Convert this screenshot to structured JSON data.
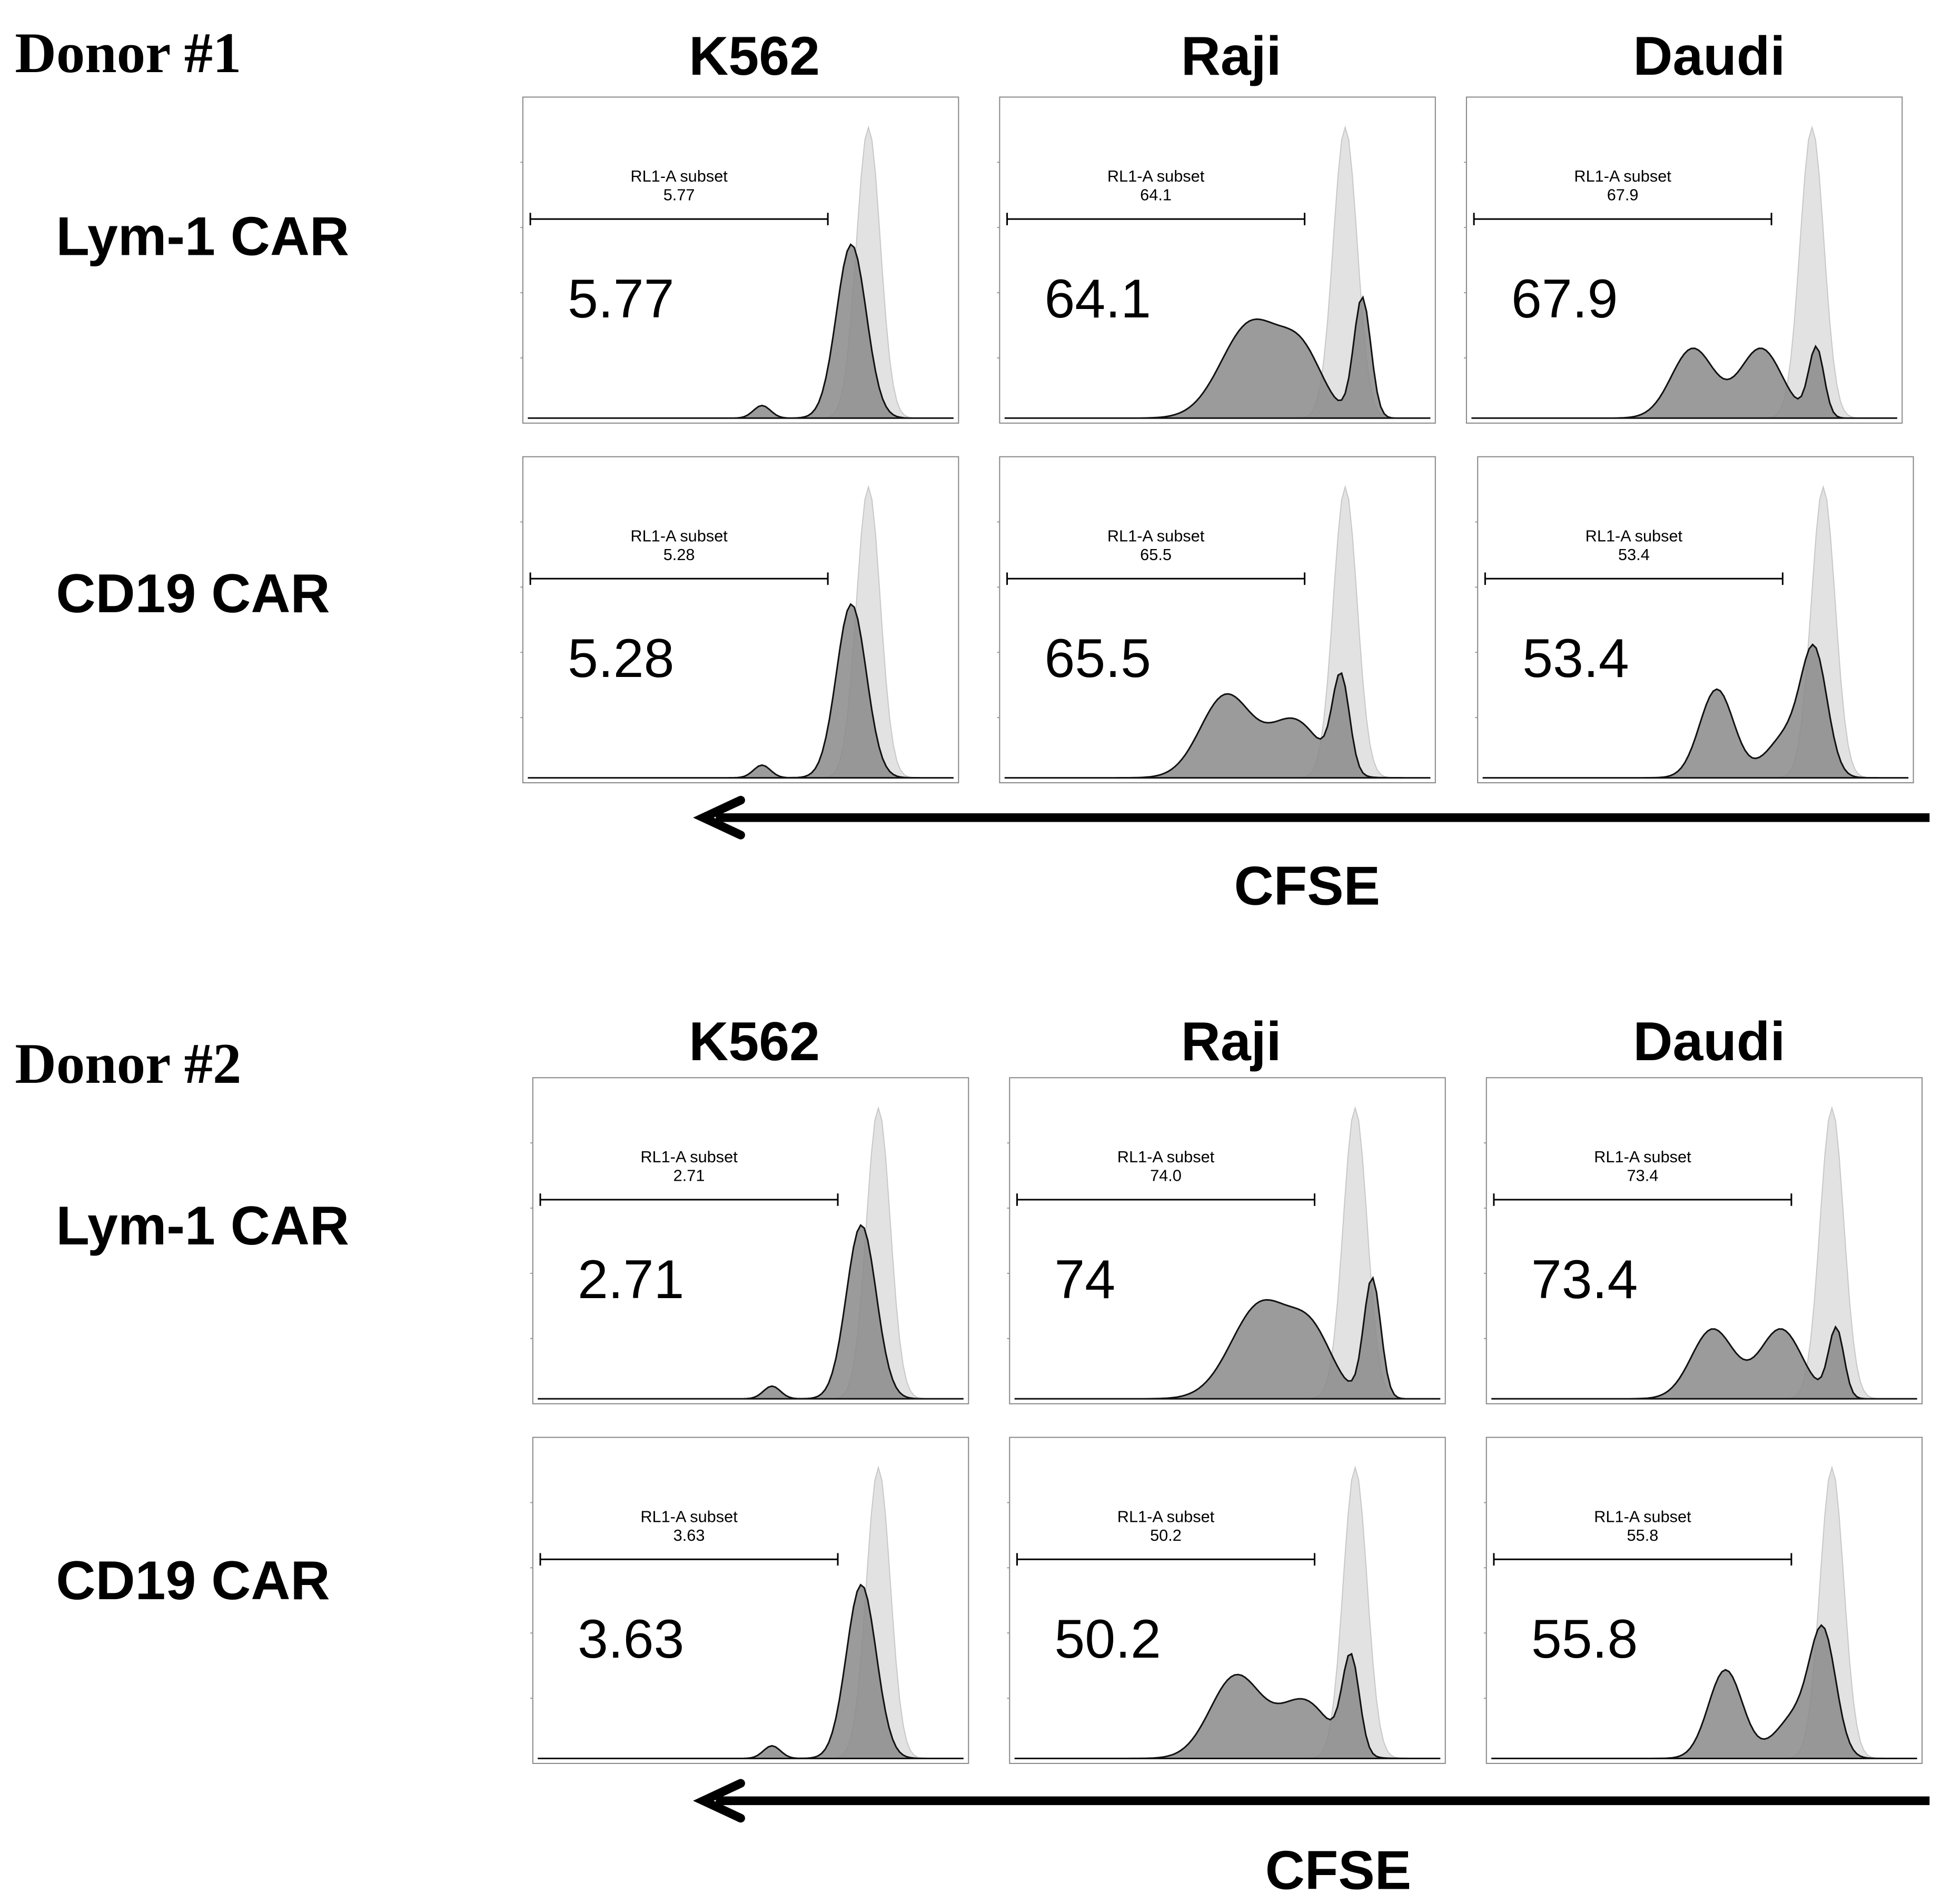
{
  "chart_data": {
    "type": "histogram-grid",
    "x_axis_label": "CFSE",
    "gate_label": "RL1-A subset",
    "columns": [
      "K562",
      "Raji",
      "Daudi"
    ],
    "rows": [
      "Lym-1 CAR",
      "CD19 CAR"
    ],
    "donors": [
      {
        "title": "Donor #1",
        "panels": [
          {
            "row": "Lym-1 CAR",
            "column": "K562",
            "gate_value": "5.77",
            "big_value": "5.77"
          },
          {
            "row": "Lym-1 CAR",
            "column": "Raji",
            "gate_value": "64.1",
            "big_value": "64.1"
          },
          {
            "row": "Lym-1 CAR",
            "column": "Daudi",
            "gate_value": "67.9",
            "big_value": "67.9"
          },
          {
            "row": "CD19 CAR",
            "column": "K562",
            "gate_value": "5.28",
            "big_value": "5.28"
          },
          {
            "row": "CD19 CAR",
            "column": "Raji",
            "gate_value": "65.5",
            "big_value": "65.5"
          },
          {
            "row": "CD19 CAR",
            "column": "Daudi",
            "gate_value": "53.4",
            "big_value": "53.4"
          }
        ]
      },
      {
        "title": "Donor #2",
        "panels": [
          {
            "row": "Lym-1 CAR",
            "column": "K562",
            "gate_value": "2.71",
            "big_value": "2.71"
          },
          {
            "row": "Lym-1 CAR",
            "column": "Raji",
            "gate_value": "74.0",
            "big_value": "74"
          },
          {
            "row": "Lym-1 CAR",
            "column": "Daudi",
            "gate_value": "73.4",
            "big_value": "73.4"
          },
          {
            "row": "CD19 CAR",
            "column": "K562",
            "gate_value": "3.63",
            "big_value": "3.63"
          },
          {
            "row": "CD19 CAR",
            "column": "Raji",
            "gate_value": "50.2",
            "big_value": "50.2"
          },
          {
            "row": "CD19 CAR",
            "column": "Daudi",
            "gate_value": "55.8",
            "big_value": "55.8"
          }
        ]
      }
    ]
  }
}
